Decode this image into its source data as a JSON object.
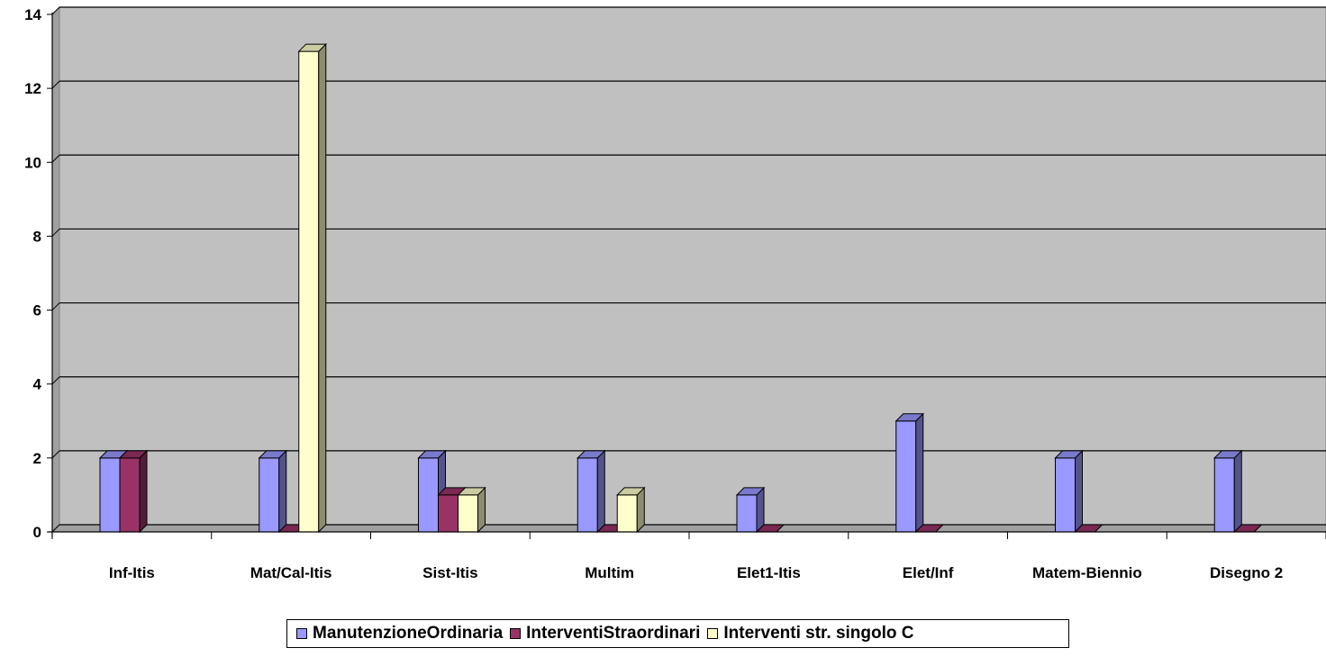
{
  "chart_data": {
    "type": "bar",
    "categories": [
      "Inf-Itis",
      "Mat/Cal-Itis",
      "Sist-Itis",
      "Multim",
      "Elet1-Itis",
      "Elet/Inf",
      "Matem-Biennio",
      "Disegno 2"
    ],
    "series": [
      {
        "name": "ManutenzioneOrdinaria",
        "color": "#9999ff",
        "values": [
          2,
          2,
          2,
          2,
          1,
          3,
          2,
          2
        ]
      },
      {
        "name": "InterventiStraordinari",
        "color": "#993366",
        "values": [
          2,
          0,
          1,
          0,
          0,
          0,
          0,
          0
        ]
      },
      {
        "name": "Interventi str. singolo C",
        "color": "#ffffcc",
        "values": [
          null,
          13,
          1,
          1,
          null,
          null,
          null,
          null
        ]
      }
    ],
    "yticks": [
      "0",
      "2",
      "4",
      "6",
      "8",
      "10",
      "12",
      "14"
    ],
    "ylim": [
      0,
      14
    ],
    "grid": true,
    "plot_background": "#c0c0c0",
    "legend_position": "bottom"
  }
}
